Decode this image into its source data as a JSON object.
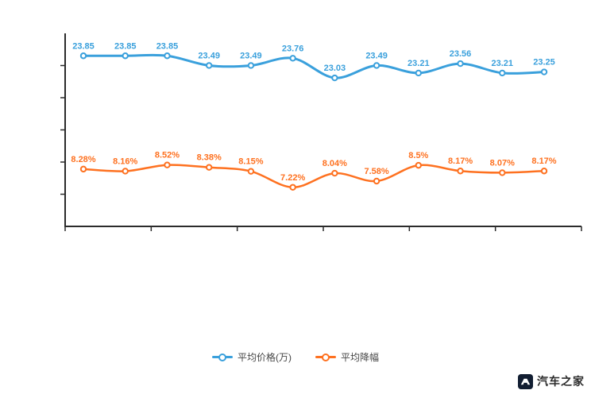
{
  "chart_data": {
    "type": "line",
    "title": "",
    "xlabel": "",
    "ylabel": "",
    "grid": false,
    "legend_position": "bottom-center",
    "smooth": true,
    "series": [
      {
        "name": "平均价格(万)",
        "color": "#3aa0dc",
        "values": [
          23.85,
          23.85,
          23.85,
          23.49,
          23.49,
          23.76,
          23.03,
          23.49,
          23.21,
          23.56,
          23.21,
          23.25
        ],
        "labels": [
          "23.85",
          "23.85",
          "23.85",
          "23.49",
          "23.49",
          "23.76",
          "23.03",
          "23.49",
          "23.21",
          "23.56",
          "23.21",
          "23.25"
        ],
        "ylim": [
          22.5,
          24.3
        ]
      },
      {
        "name": "平均降幅",
        "color": "#fe7120",
        "values": [
          8.28,
          8.16,
          8.52,
          8.38,
          8.15,
          7.22,
          8.04,
          7.58,
          8.5,
          8.17,
          8.07,
          8.17
        ],
        "labels": [
          "8.28%",
          "8.16%",
          "8.52%",
          "8.38%",
          "8.15%",
          "7.22%",
          "8.04%",
          "7.58%",
          "8.5%",
          "8.17%",
          "8.07%",
          "8.17%"
        ],
        "ylim": [
          6.7,
          9.2
        ]
      }
    ],
    "axis_color": "#2b2b2b",
    "x_tick_count": 7,
    "y_tick_count": 5
  },
  "legend": {
    "items": [
      "平均价格(万)",
      "平均降幅"
    ]
  },
  "watermark": {
    "text": "汽车之家"
  }
}
